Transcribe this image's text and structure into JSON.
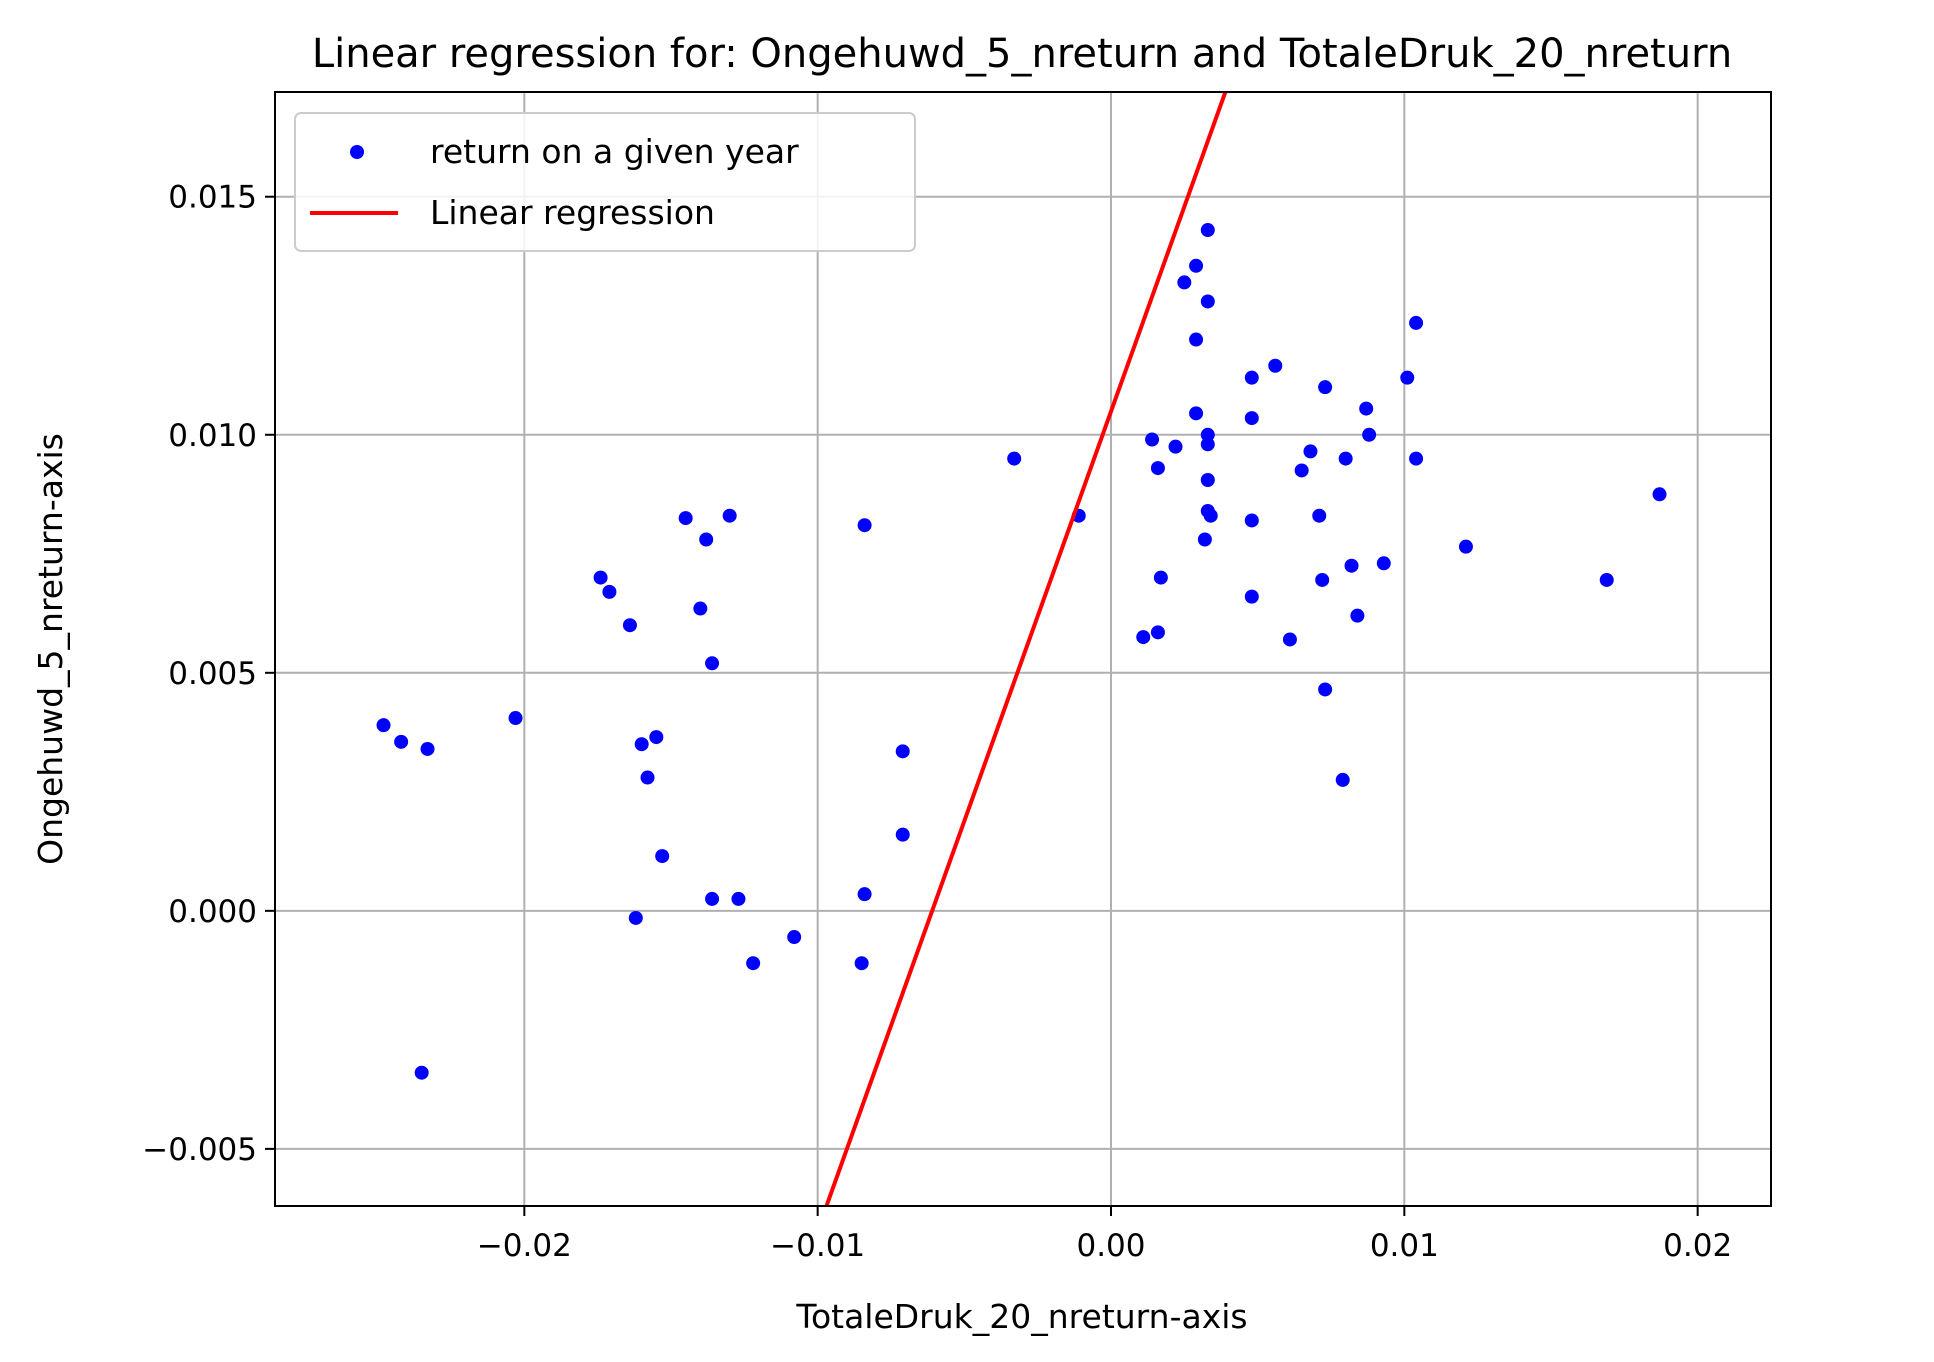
{
  "chart_data": {
    "type": "scatter",
    "title": "Linear regression for: Ongehuwd_5_nreturn and TotaleDruk_20_nreturn",
    "xlabel": "TotaleDruk_20_nreturn-axis",
    "ylabel": "Ongehuwd_5_nreturn-axis",
    "xlim": [
      -0.0285,
      0.0225
    ],
    "ylim": [
      -0.0062,
      0.0172
    ],
    "xticks": [
      -0.02,
      -0.01,
      0.0,
      0.01,
      0.02
    ],
    "xtick_labels": [
      "−0.02",
      "−0.01",
      "0.00",
      "0.01",
      "0.02"
    ],
    "yticks": [
      -0.005,
      0.0,
      0.005,
      0.01,
      0.015
    ],
    "ytick_labels": [
      "−0.005",
      "0.000",
      "0.005",
      "0.010",
      "0.015"
    ],
    "grid": true,
    "legend_position": "upper-left",
    "series": [
      {
        "name": "return on a given year",
        "kind": "scatter",
        "color": "#0000ff",
        "points": [
          [
            -0.0248,
            0.0039
          ],
          [
            -0.0242,
            0.00355
          ],
          [
            -0.0233,
            0.0034
          ],
          [
            -0.0235,
            -0.0034
          ],
          [
            -0.0203,
            0.00405
          ],
          [
            -0.0174,
            0.007
          ],
          [
            -0.0171,
            0.0067
          ],
          [
            -0.0164,
            0.006
          ],
          [
            -0.0162,
            -0.00015
          ],
          [
            -0.016,
            0.0035
          ],
          [
            -0.0158,
            0.0028
          ],
          [
            -0.0155,
            0.00365
          ],
          [
            -0.0153,
            0.00115
          ],
          [
            -0.0145,
            0.00825
          ],
          [
            -0.014,
            0.00635
          ],
          [
            -0.0138,
            0.0078
          ],
          [
            -0.0136,
            0.0052
          ],
          [
            -0.0136,
            0.00025
          ],
          [
            -0.013,
            0.0083
          ],
          [
            -0.0127,
            0.00025
          ],
          [
            -0.0122,
            -0.0011
          ],
          [
            -0.0108,
            -0.00055
          ],
          [
            -0.0084,
            0.0081
          ],
          [
            -0.0084,
            0.00035
          ],
          [
            -0.0085,
            -0.0011
          ],
          [
            -0.0071,
            0.00335
          ],
          [
            -0.0071,
            0.0016
          ],
          [
            -0.0033,
            0.0095
          ],
          [
            -0.0011,
            0.0083
          ],
          [
            0.0011,
            0.00575
          ],
          [
            0.0014,
            0.0099
          ],
          [
            0.0016,
            0.0093
          ],
          [
            0.0016,
            0.00585
          ],
          [
            0.0017,
            0.007
          ],
          [
            0.0022,
            0.00975
          ],
          [
            0.0025,
            0.0132
          ],
          [
            0.0029,
            0.01355
          ],
          [
            0.0029,
            0.012
          ],
          [
            0.0029,
            0.01045
          ],
          [
            0.0032,
            0.0078
          ],
          [
            0.0033,
            0.0143
          ],
          [
            0.0033,
            0.0128
          ],
          [
            0.0033,
            0.01
          ],
          [
            0.0033,
            0.0098
          ],
          [
            0.0033,
            0.00905
          ],
          [
            0.0033,
            0.0084
          ],
          [
            0.0034,
            0.0083
          ],
          [
            0.0048,
            0.01035
          ],
          [
            0.0048,
            0.0112
          ],
          [
            0.0048,
            0.0082
          ],
          [
            0.0048,
            0.0066
          ],
          [
            0.0056,
            0.01145
          ],
          [
            0.0061,
            0.0057
          ],
          [
            0.0065,
            0.00925
          ],
          [
            0.0068,
            0.00965
          ],
          [
            0.0071,
            0.0083
          ],
          [
            0.0072,
            0.00695
          ],
          [
            0.0073,
            0.011
          ],
          [
            0.0073,
            0.00465
          ],
          [
            0.0079,
            0.00275
          ],
          [
            0.008,
            0.0095
          ],
          [
            0.0082,
            0.00725
          ],
          [
            0.0084,
            0.0062
          ],
          [
            0.0087,
            0.01055
          ],
          [
            0.0088,
            0.01
          ],
          [
            0.0093,
            0.0073
          ],
          [
            0.0101,
            0.0112
          ],
          [
            0.0104,
            0.01235
          ],
          [
            0.0104,
            0.0095
          ],
          [
            0.0121,
            0.00765
          ],
          [
            0.0169,
            0.00695
          ],
          [
            0.0187,
            0.00875
          ]
        ]
      },
      {
        "name": "Linear regression",
        "kind": "line",
        "color": "#ff0000",
        "points": [
          [
            -0.0097,
            -0.0062
          ],
          [
            0.0039,
            0.0172
          ]
        ]
      }
    ]
  }
}
